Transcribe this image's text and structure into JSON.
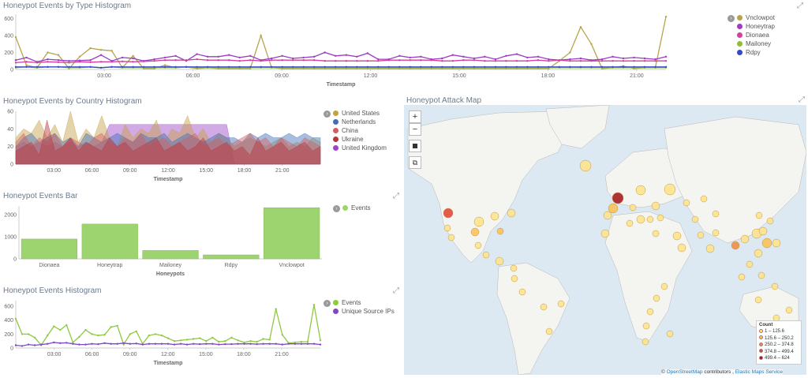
{
  "panels": {
    "type_hist": {
      "title": "Honeypot Events by Type Histogram"
    },
    "country_hist": {
      "title": "Honeypot Events by Country Histogram"
    },
    "events_bar": {
      "title": "Honeypot Events Bar"
    },
    "events_hist": {
      "title": "Honeypot Events Histogram"
    },
    "attack_map": {
      "title": "Honeypot Attack Map"
    }
  },
  "map": {
    "zoom_in": "+",
    "zoom_out": "−",
    "legend_title": "Count",
    "legend": [
      {
        "label": "1 – 125.6",
        "color": "#ffe38a"
      },
      {
        "label": "125.6 – 250.2",
        "color": "#fcc054"
      },
      {
        "label": "250.2 – 374.8",
        "color": "#f08b3a"
      },
      {
        "label": "374.8 – 499.4",
        "color": "#e0402e"
      },
      {
        "label": "499.4 – 624",
        "color": "#a50f15"
      }
    ],
    "attribution": {
      "copy": "©",
      "osm": "OpenStreetMap",
      "contrib": "contributors ,",
      "ems": "Elastic Maps Service"
    }
  },
  "chart_data": [
    {
      "id": "type_hist",
      "type": "line",
      "title": "Honeypot Events by Type Histogram",
      "xlabel": "Timestamp",
      "ylabel": "",
      "x_ticks": [
        "03:00",
        "06:00",
        "09:00",
        "12:00",
        "15:00",
        "18:00",
        "21:00"
      ],
      "y_ticks": [
        0,
        200,
        400,
        600
      ],
      "ylim": [
        0,
        650
      ],
      "series": [
        {
          "name": "Vnclowpot",
          "color": "#b9a44c",
          "values": [
            380,
            50,
            20,
            200,
            170,
            10,
            150,
            250,
            230,
            220,
            20,
            160,
            10,
            10,
            50,
            20,
            30,
            10,
            20,
            10,
            10,
            10,
            10,
            400,
            20,
            10,
            10,
            10,
            10,
            10,
            10,
            10,
            10,
            10,
            10,
            10,
            10,
            10,
            10,
            10,
            10,
            10,
            10,
            10,
            10,
            10,
            10,
            10,
            10,
            10,
            10,
            100,
            200,
            500,
            300,
            10,
            20,
            40,
            10,
            20,
            20,
            620
          ]
        },
        {
          "name": "Honeytrap",
          "color": "#9c3bc5",
          "values": [
            110,
            140,
            90,
            120,
            110,
            100,
            105,
            110,
            170,
            100,
            140,
            130,
            100,
            120,
            140,
            160,
            100,
            180,
            150,
            150,
            170,
            140,
            160,
            110,
            130,
            160,
            130,
            140,
            150,
            200,
            160,
            170,
            150,
            190,
            120,
            120,
            160,
            140,
            150,
            120,
            130,
            170,
            150,
            130,
            150,
            120,
            160,
            180,
            140,
            150,
            120,
            110,
            120,
            130,
            110,
            120,
            150,
            130,
            140,
            130,
            120,
            150
          ]
        },
        {
          "name": "Dionaea",
          "color": "#d23f9f",
          "values": [
            80,
            90,
            80,
            90,
            85,
            80,
            90,
            85,
            90,
            90,
            95,
            90,
            95,
            100,
            110,
            110,
            110,
            120,
            110,
            110,
            110,
            100,
            110,
            100,
            110,
            110,
            110,
            110,
            110,
            100,
            100,
            100,
            100,
            100,
            100,
            110,
            110,
            110,
            110,
            110,
            100,
            100,
            110,
            110,
            100,
            100,
            100,
            100,
            100,
            110,
            100,
            110,
            100,
            100,
            100,
            100,
            100,
            100,
            100,
            100,
            100,
            100
          ]
        },
        {
          "name": "Mailoney",
          "color": "#8fbe3c",
          "values": [
            20,
            30,
            20,
            30,
            30,
            20,
            20,
            30,
            20,
            30,
            20,
            20,
            20,
            20,
            20,
            20,
            30,
            20,
            20,
            20,
            20,
            20,
            20,
            20,
            20,
            20,
            20,
            20,
            20,
            20,
            20,
            20,
            20,
            20,
            20,
            20,
            20,
            20,
            20,
            20,
            20,
            20,
            20,
            20,
            20,
            20,
            20,
            20,
            20,
            20,
            20,
            20,
            20,
            20,
            20,
            20,
            20,
            20,
            20,
            20,
            20,
            20
          ]
        },
        {
          "name": "Rdpy",
          "color": "#3349c9",
          "values": [
            30,
            30,
            30,
            30,
            30,
            30,
            30,
            30,
            20,
            30,
            30,
            30,
            30,
            30,
            30,
            30,
            30,
            30,
            30,
            30,
            30,
            30,
            30,
            30,
            30,
            30,
            30,
            30,
            30,
            30,
            30,
            30,
            30,
            30,
            30,
            30,
            30,
            30,
            30,
            30,
            30,
            30,
            30,
            30,
            30,
            30,
            30,
            30,
            30,
            30,
            30,
            30,
            30,
            30,
            30,
            30,
            30,
            30,
            30,
            30,
            30,
            30
          ]
        }
      ]
    },
    {
      "id": "country_hist",
      "type": "area",
      "title": "Honeypot Events by Country Histogram",
      "xlabel": "Timestamp",
      "ylabel": "",
      "x_ticks": [
        "03:00",
        "06:00",
        "09:00",
        "12:00",
        "15:00",
        "18:00",
        "21:00"
      ],
      "y_ticks": [
        0,
        20,
        40,
        60
      ],
      "ylim": [
        0,
        60
      ],
      "series": [
        {
          "name": "United States",
          "color": "#c5a045",
          "values": [
            30,
            40,
            35,
            50,
            30,
            45,
            25,
            60,
            25,
            40,
            30,
            55,
            30,
            20,
            45,
            30,
            40,
            35,
            50,
            25,
            40,
            35,
            55,
            30,
            40,
            25,
            35,
            30,
            20,
            25,
            30,
            25,
            20,
            25,
            30,
            20,
            25,
            20,
            30,
            25
          ]
        },
        {
          "name": "Netherlands",
          "color": "#3e6fb8",
          "values": [
            20,
            30,
            35,
            25,
            30,
            35,
            25,
            30,
            20,
            35,
            30,
            25,
            30,
            35,
            30,
            25,
            35,
            30,
            30,
            35,
            25,
            30,
            35,
            30,
            25,
            30,
            35,
            30,
            30,
            25,
            35,
            30,
            35,
            30,
            30,
            35,
            30,
            35,
            30,
            30
          ]
        },
        {
          "name": "China",
          "color": "#d25f5f",
          "values": [
            25,
            35,
            20,
            30,
            25,
            35,
            20,
            30,
            25,
            20,
            30,
            35,
            25,
            20,
            30,
            25,
            35,
            20,
            25,
            30,
            20,
            25,
            30,
            35,
            20,
            25,
            30,
            20,
            25,
            30,
            35,
            25,
            30,
            20,
            30,
            25,
            20,
            30,
            25,
            20
          ]
        },
        {
          "name": "Ukraine",
          "color": "#b8343c",
          "values": [
            15,
            20,
            25,
            10,
            50,
            15,
            20,
            30,
            15,
            25,
            20,
            15,
            30,
            20,
            25,
            15,
            20,
            25,
            30,
            15,
            20,
            25,
            15,
            20,
            30,
            15,
            20,
            25,
            15,
            20,
            10,
            30,
            15,
            20,
            25,
            15,
            20,
            25,
            15,
            20
          ]
        },
        {
          "name": "United Kingdom",
          "color": "#9b45c8",
          "values": [
            20,
            25,
            20,
            25,
            20,
            25,
            20,
            25,
            20,
            25,
            20,
            25,
            45,
            45,
            45,
            45,
            45,
            45,
            45,
            45,
            45,
            45,
            45,
            45,
            45,
            45,
            45,
            45,
            0,
            0,
            0,
            0,
            0,
            0,
            0,
            0,
            0,
            0,
            0,
            0
          ]
        }
      ]
    },
    {
      "id": "events_bar",
      "type": "bar",
      "title": "Honeypot Events Bar",
      "xlabel": "Honeypots",
      "ylabel": "",
      "y_ticks": [
        0,
        1000,
        2000
      ],
      "ylim": [
        0,
        2400
      ],
      "categories": [
        "Dionaea",
        "Honeytrap",
        "Mailoney",
        "Rdpy",
        "Vnclowpot"
      ],
      "series": [
        {
          "name": "Events",
          "color": "#9ed470",
          "values": [
            900,
            1580,
            380,
            180,
            2320
          ]
        }
      ]
    },
    {
      "id": "events_hist",
      "type": "line",
      "title": "Honeypot Events Histogram",
      "xlabel": "Timestamp",
      "ylabel": "",
      "x_ticks": [
        "03:00",
        "06:00",
        "09:00",
        "12:00",
        "15:00",
        "18:00",
        "21:00"
      ],
      "y_ticks": [
        0,
        200,
        400,
        600
      ],
      "ylim": [
        0,
        680
      ],
      "series": [
        {
          "name": "Events",
          "color": "#8fc93f",
          "values": [
            420,
            200,
            200,
            150,
            40,
            180,
            310,
            260,
            330,
            80,
            160,
            260,
            200,
            180,
            190,
            300,
            320,
            50,
            200,
            240,
            60,
            180,
            200,
            180,
            140,
            100,
            110,
            120,
            130,
            140,
            100,
            150,
            90,
            100,
            150,
            110,
            80,
            100,
            90,
            130,
            120,
            560,
            190,
            70,
            80,
            90,
            90,
            620,
            110
          ]
        },
        {
          "name": "Unique Source IPs",
          "color": "#8046c6",
          "values": [
            40,
            30,
            50,
            40,
            50,
            60,
            80,
            70,
            75,
            60,
            50,
            50,
            60,
            55,
            70,
            60,
            60,
            70,
            60,
            65,
            50,
            60,
            60,
            60,
            60,
            50,
            60,
            50,
            60,
            55,
            60,
            60,
            50,
            55,
            55,
            60,
            60,
            60,
            55,
            60,
            60,
            60,
            50,
            60,
            60,
            60,
            60,
            60,
            50
          ]
        }
      ]
    }
  ]
}
